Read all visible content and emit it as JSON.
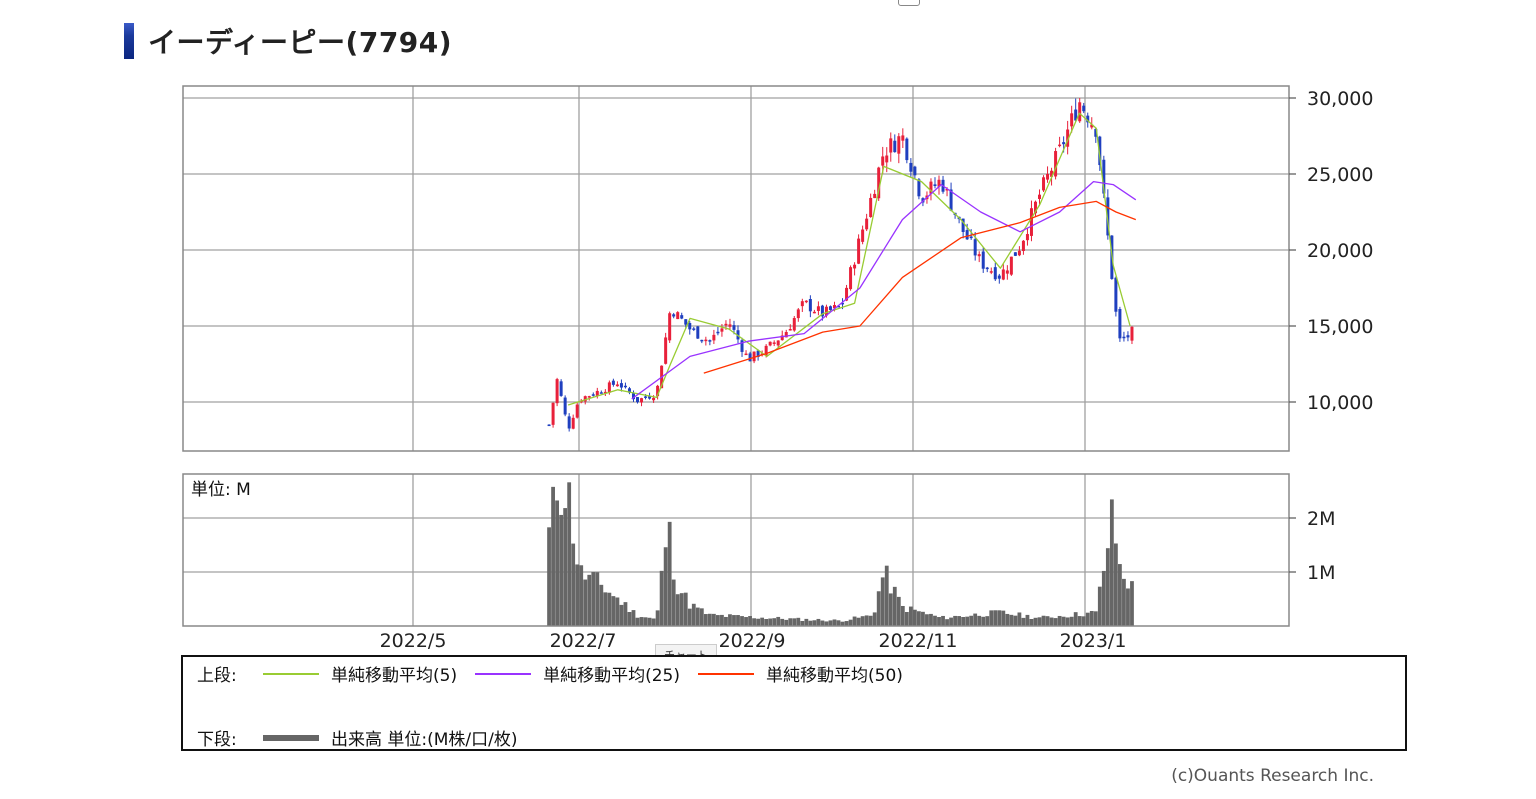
{
  "page": {
    "title": "イーディーピー(7794)",
    "copyright": "(c)Ouants Research Inc.",
    "tooltip": "チャート"
  },
  "legend": {
    "upper_label": "上段:",
    "lower_label": "下段:",
    "items": [
      {
        "label": "単純移動平均(5)",
        "color": "#99cc33"
      },
      {
        "label": "単純移動平均(25)",
        "color": "#9933ff"
      },
      {
        "label": "単純移動平均(50)",
        "color": "#ff3300"
      }
    ],
    "volume_label": "出来高 単位:(M株/口/枚)",
    "volume_color": "#666666"
  },
  "chart_data": [
    {
      "type": "line",
      "panel": "price",
      "title": "",
      "xlabel": "",
      "ylabel": "",
      "x_tick_labels": [
        "2022/5",
        "2022/7",
        "2022/9",
        "2022/11",
        "2023/1"
      ],
      "y_tick_labels": [
        "10,000",
        "15,000",
        "20,000",
        "25,000",
        "30,000"
      ],
      "ylim": [
        7000,
        31000
      ],
      "candle_up_color": "#e8203a",
      "candle_down_color": "#1f3fbf",
      "close_anchors": [
        [
          "2022/6/20",
          8500
        ],
        [
          "2022/6/23",
          11500
        ],
        [
          "2022/6/27",
          8200
        ],
        [
          "2022/7/1",
          10200
        ],
        [
          "2022/7/8",
          10700
        ],
        [
          "2022/7/15",
          11300
        ],
        [
          "2022/7/22",
          10100
        ],
        [
          "2022/7/29",
          10600
        ],
        [
          "2022/8/3",
          16200
        ],
        [
          "2022/8/10",
          14800
        ],
        [
          "2022/8/17",
          14000
        ],
        [
          "2022/8/24",
          15300
        ],
        [
          "2022/8/31",
          12800
        ],
        [
          "2022/9/7",
          13500
        ],
        [
          "2022/9/14",
          14600
        ],
        [
          "2022/9/21",
          16500
        ],
        [
          "2022/9/28",
          15800
        ],
        [
          "2022/10/5",
          16300
        ],
        [
          "2022/10/14",
          22000
        ],
        [
          "2022/10/21",
          26500
        ],
        [
          "2022/10/28",
          27500
        ],
        [
          "2022/11/4",
          23500
        ],
        [
          "2022/11/11",
          24600
        ],
        [
          "2022/11/18",
          21500
        ],
        [
          "2022/11/25",
          19200
        ],
        [
          "2022/12/2",
          18300
        ],
        [
          "2022/12/9",
          20300
        ],
        [
          "2022/12/16",
          23700
        ],
        [
          "2022/12/23",
          26500
        ],
        [
          "2022/12/30",
          29800
        ],
        [
          "2023/1/5",
          28000
        ],
        [
          "2023/1/11",
          17500
        ],
        [
          "2023/1/13",
          14000
        ],
        [
          "2023/1/17",
          14400
        ],
        [
          "2023/1/19",
          15000
        ]
      ],
      "series": [
        {
          "name": "単純移動平均(5)",
          "points": [
            [
              "2022/6/27",
              9800
            ],
            [
              "2022/7/15",
              10800
            ],
            [
              "2022/7/29",
              10300
            ],
            [
              "2022/8/3",
              12500
            ],
            [
              "2022/8/10",
              15500
            ],
            [
              "2022/8/24",
              14800
            ],
            [
              "2022/9/7",
              13000
            ],
            [
              "2022/9/28",
              15800
            ],
            [
              "2022/10/10",
              16500
            ],
            [
              "2022/10/21",
              25500
            ],
            [
              "2022/11/4",
              24500
            ],
            [
              "2022/11/18",
              22000
            ],
            [
              "2022/12/2",
              18800
            ],
            [
              "2022/12/16",
              23000
            ],
            [
              "2022/12/30",
              29000
            ],
            [
              "2023/1/5",
              28000
            ],
            [
              "2023/1/11",
              19000
            ],
            [
              "2023/1/17",
              15000
            ]
          ]
        },
        {
          "name": "単純移動平均(25)",
          "points": [
            [
              "2022/7/20",
              10200
            ],
            [
              "2022/8/10",
              13000
            ],
            [
              "2022/8/31",
              14000
            ],
            [
              "2022/9/21",
              14500
            ],
            [
              "2022/10/12",
              17500
            ],
            [
              "2022/10/28",
              22000
            ],
            [
              "2022/11/11",
              24300
            ],
            [
              "2022/11/25",
              22500
            ],
            [
              "2022/12/9",
              21200
            ],
            [
              "2022/12/23",
              22500
            ],
            [
              "2023/1/4",
              24500
            ],
            [
              "2023/1/11",
              24300
            ],
            [
              "2023/1/19",
              23300
            ]
          ]
        },
        {
          "name": "単純移動平均(50)",
          "points": [
            [
              "2022/8/15",
              11900
            ],
            [
              "2022/9/7",
              13200
            ],
            [
              "2022/9/28",
              14600
            ],
            [
              "2022/10/12",
              15000
            ],
            [
              "2022/10/28",
              18200
            ],
            [
              "2022/11/18",
              20800
            ],
            [
              "2022/12/9",
              21800
            ],
            [
              "2022/12/23",
              22800
            ],
            [
              "2023/1/5",
              23200
            ],
            [
              "2023/1/12",
              22500
            ],
            [
              "2023/1/19",
              22000
            ]
          ]
        }
      ]
    },
    {
      "type": "bar",
      "panel": "volume",
      "unit_label": "単位: M",
      "y_tick_labels": [
        "1M",
        "2M"
      ],
      "ylim": [
        0,
        2.8
      ],
      "volume_anchors": [
        [
          "2022/6/20",
          1.7
        ],
        [
          "2022/6/23",
          2.6
        ],
        [
          "2022/6/27",
          2.5
        ],
        [
          "2022/7/1",
          1.0
        ],
        [
          "2022/7/8",
          0.8
        ],
        [
          "2022/7/15",
          0.5
        ],
        [
          "2022/7/22",
          0.2
        ],
        [
          "2022/7/29",
          0.12
        ],
        [
          "2022/8/2",
          1.9
        ],
        [
          "2022/8/5",
          0.8
        ],
        [
          "2022/8/10",
          0.4
        ],
        [
          "2022/8/17",
          0.2
        ],
        [
          "2022/9/7",
          0.15
        ],
        [
          "2022/9/21",
          0.12
        ],
        [
          "2022/10/5",
          0.1
        ],
        [
          "2022/10/17",
          0.2
        ],
        [
          "2022/10/21",
          1.0
        ],
        [
          "2022/10/28",
          0.35
        ],
        [
          "2022/11/11",
          0.15
        ],
        [
          "2022/12/2",
          0.25
        ],
        [
          "2022/12/16",
          0.15
        ],
        [
          "2023/1/5",
          0.25
        ],
        [
          "2023/1/11",
          2.1
        ],
        [
          "2023/1/13",
          1.1
        ],
        [
          "2023/1/19",
          0.6
        ]
      ]
    }
  ]
}
